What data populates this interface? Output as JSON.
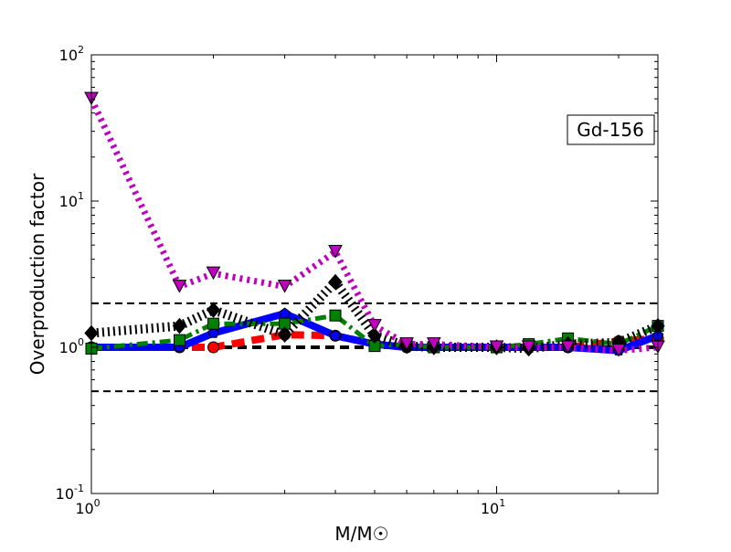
{
  "chart_data": {
    "type": "line",
    "title": "",
    "annotation": "Gd-156",
    "xlabel": "M/M☉",
    "ylabel": "Overproduction factor",
    "xscale": "log",
    "yscale": "log",
    "xlim": [
      1,
      25
    ],
    "ylim": [
      0.1,
      100
    ],
    "xticks": [
      {
        "value": 1,
        "label": "10",
        "exp": "0"
      },
      {
        "value": 10,
        "label": "10",
        "exp": "1"
      }
    ],
    "yticks": [
      {
        "value": 0.1,
        "label": "10",
        "exp": "-1"
      },
      {
        "value": 1,
        "label": "10",
        "exp": "0"
      },
      {
        "value": 10,
        "label": "10",
        "exp": "1"
      },
      {
        "value": 100,
        "label": "10",
        "exp": "2"
      }
    ],
    "reference_lines": [
      0.5,
      1,
      2
    ],
    "x": [
      1,
      1.65,
      2,
      3,
      4,
      5,
      6,
      7,
      10,
      12,
      15,
      20,
      25
    ],
    "series": [
      {
        "name": "red-circles",
        "color": "#ff0000",
        "marker": "circle",
        "style": "dashed",
        "values": [
          1.0,
          1.0,
          1.0,
          1.22,
          1.2,
          1.05,
          1.0,
          1.0,
          1.0,
          1.0,
          1.0,
          1.1,
          1.15
        ]
      },
      {
        "name": "blue-pentagons",
        "color": "#0000ff",
        "marker": "pentagon",
        "style": "solid",
        "values": [
          1.0,
          1.0,
          1.25,
          1.7,
          1.2,
          1.05,
          1.0,
          1.0,
          1.0,
          1.0,
          1.0,
          0.95,
          1.2
        ]
      },
      {
        "name": "green-squares",
        "color": "#008000",
        "marker": "square",
        "style": "dashdot",
        "values": [
          0.98,
          1.12,
          1.45,
          1.45,
          1.65,
          1.02,
          1.05,
          1.0,
          1.0,
          1.05,
          1.15,
          1.05,
          1.4
        ]
      },
      {
        "name": "black-diamonds",
        "color": "#000000",
        "marker": "diamond",
        "style": "dotted",
        "values": [
          1.25,
          1.4,
          1.8,
          1.22,
          2.8,
          1.2,
          1.02,
          1.0,
          1.0,
          0.98,
          1.05,
          1.08,
          1.4
        ]
      },
      {
        "name": "magenta-triangles",
        "color": "#bf00bf",
        "marker": "triangle-down",
        "style": "dotted",
        "values": [
          50,
          2.6,
          3.2,
          2.6,
          4.5,
          1.4,
          1.05,
          1.05,
          1.0,
          1.0,
          1.0,
          0.95,
          1.0
        ]
      }
    ]
  }
}
